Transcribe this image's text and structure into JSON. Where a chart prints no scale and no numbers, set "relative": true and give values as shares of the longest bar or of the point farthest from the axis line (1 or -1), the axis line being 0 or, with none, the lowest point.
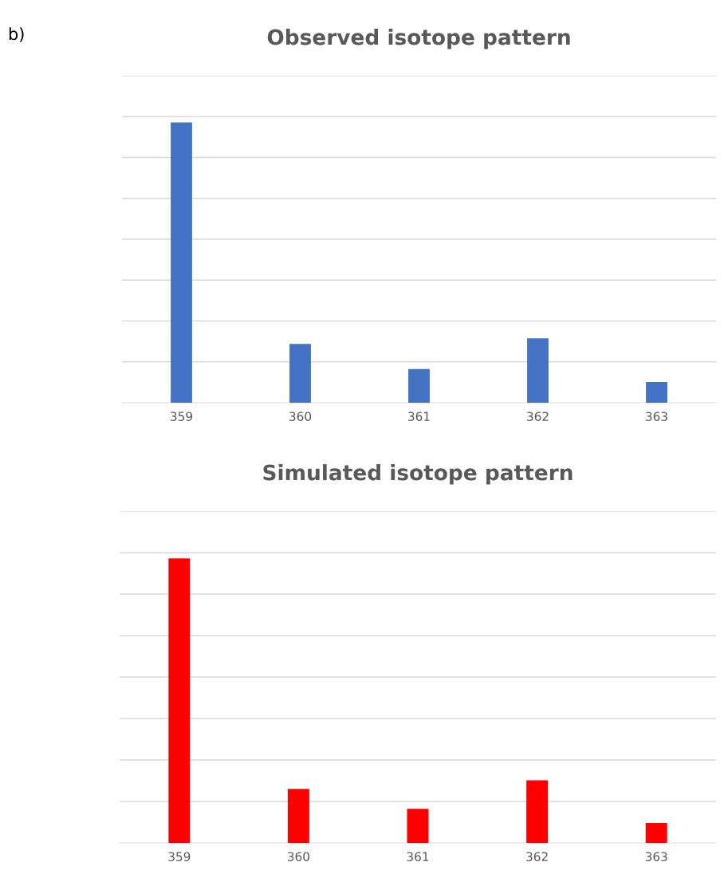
{
  "chart_data": [
    {
      "type": "bar",
      "title": "Observed isotope pattern",
      "annotations": [
        "b)"
      ],
      "categories": [
        "359",
        "360",
        "361",
        "362",
        "363"
      ],
      "relative": true,
      "series": [
        {
          "color": "#4472c4",
          "values": [
            1,
            0.21,
            0.12,
            0.23,
            0.074
          ]
        }
      ],
      "grid": "y"
    },
    {
      "type": "bar",
      "title": "Simulated isotope pattern",
      "categories": [
        "359",
        "360",
        "361",
        "362",
        "363"
      ],
      "relative": true,
      "series": [
        {
          "color": "#ff0000",
          "values": [
            1,
            0.19,
            0.12,
            0.22,
            0.07
          ]
        }
      ],
      "grid": "y"
    }
  ]
}
